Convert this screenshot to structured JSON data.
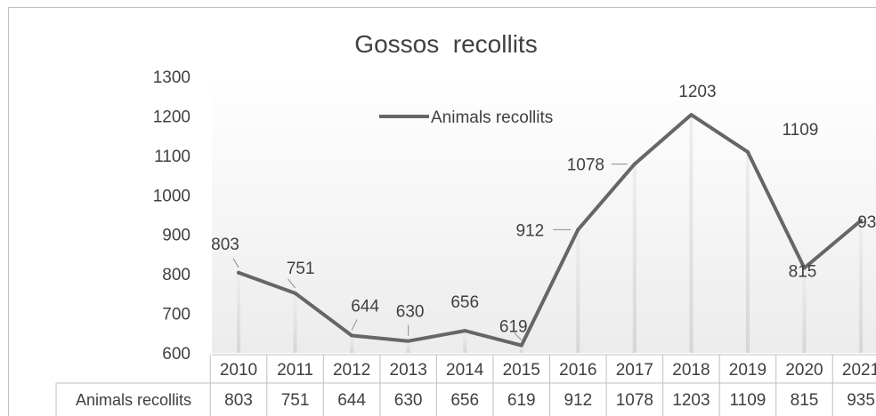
{
  "chart_data": {
    "type": "line",
    "title": "Gossos  recollits",
    "xlabel": "",
    "ylabel": "",
    "categories": [
      "2010",
      "2011",
      "2012",
      "2013",
      "2014",
      "2015",
      "2016",
      "2017",
      "2018",
      "2019",
      "2020",
      "2021"
    ],
    "series": [
      {
        "name": "Animals recollits",
        "values": [
          803,
          751,
          644,
          630,
          656,
          619,
          912,
          1078,
          1203,
          1109,
          815,
          935
        ],
        "color": "#666666"
      }
    ],
    "ylim": [
      600,
      1300
    ],
    "yticks": [
      600,
      700,
      800,
      900,
      1000,
      1100,
      1200,
      1300
    ],
    "legend": "top-center",
    "data_table": true,
    "grid": false
  }
}
